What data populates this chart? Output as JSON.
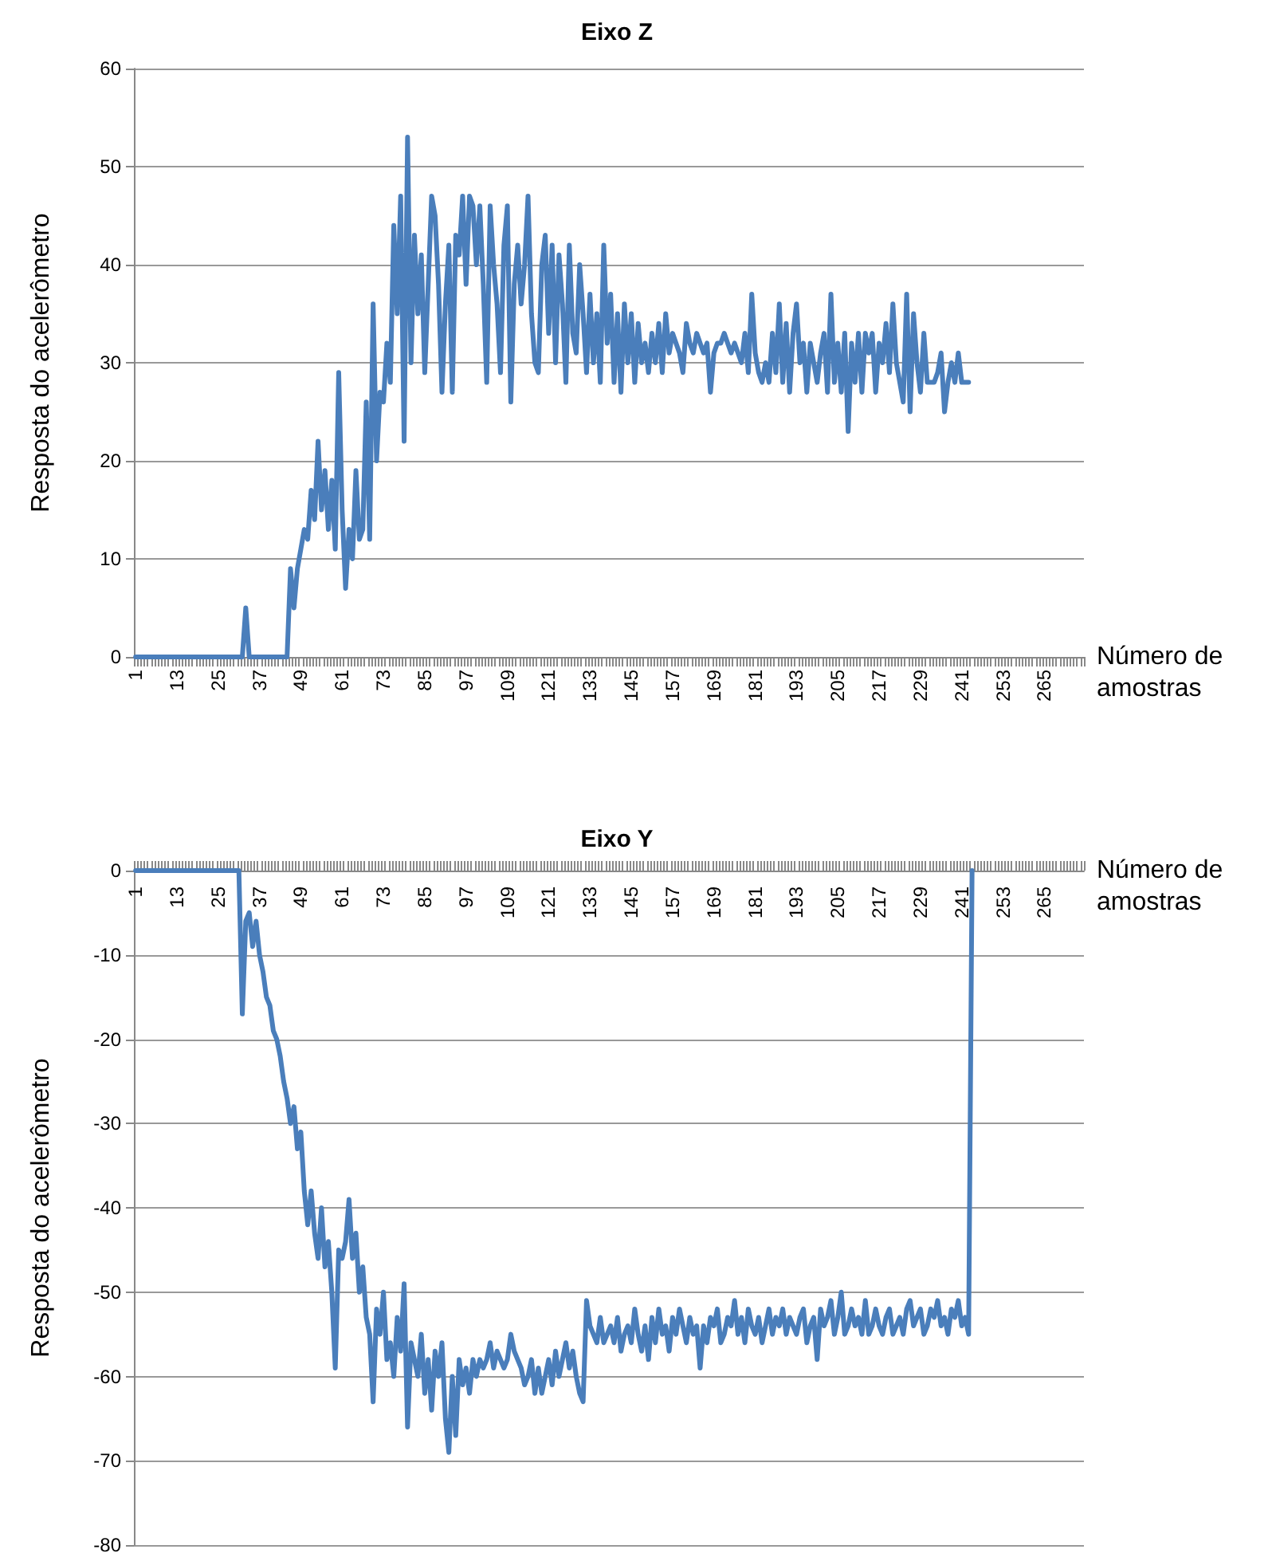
{
  "chart_data": [
    {
      "type": "line",
      "title": "Eixo Z",
      "xlabel": "Número de amostras",
      "ylabel": "Resposta do acelerômetro",
      "marker": "none",
      "grid": "y",
      "ylim": [
        0,
        60
      ],
      "yticks": [
        0,
        10,
        20,
        30,
        40,
        50,
        60
      ],
      "categories": [
        "1",
        null,
        null,
        null,
        null,
        null,
        null,
        null,
        null,
        null,
        null,
        null,
        "13",
        null,
        null,
        null,
        null,
        null,
        null,
        null,
        null,
        null,
        null,
        null,
        "25",
        null,
        null,
        null,
        null,
        null,
        null,
        null,
        null,
        null,
        null,
        null,
        "37",
        null,
        null,
        null,
        null,
        null,
        null,
        null,
        null,
        null,
        null,
        null,
        "49",
        null,
        null,
        null,
        null,
        null,
        null,
        null,
        null,
        null,
        null,
        null,
        "61",
        null,
        null,
        null,
        null,
        null,
        null,
        null,
        null,
        null,
        null,
        null,
        "73",
        null,
        null,
        null,
        null,
        null,
        null,
        null,
        null,
        null,
        null,
        null,
        "85",
        null,
        null,
        null,
        null,
        null,
        null,
        null,
        null,
        null,
        null,
        null,
        "97",
        null,
        null,
        null,
        null,
        null,
        null,
        null,
        null,
        null,
        null,
        null,
        "109",
        null,
        null,
        null,
        null,
        null,
        null,
        null,
        null,
        null,
        null,
        null,
        "121",
        null,
        null,
        null,
        null,
        null,
        null,
        null,
        null,
        null,
        null,
        null,
        "133",
        null,
        null,
        null,
        null,
        null,
        null,
        null,
        null,
        null,
        null,
        null,
        "145",
        null,
        null,
        null,
        null,
        null,
        null,
        null,
        null,
        null,
        null,
        null,
        "157",
        null,
        null,
        null,
        null,
        null,
        null,
        null,
        null,
        null,
        null,
        null,
        "169",
        null,
        null,
        null,
        null,
        null,
        null,
        null,
        null,
        null,
        null,
        null,
        "181",
        null,
        null,
        null,
        null,
        null,
        null,
        null,
        null,
        null,
        null,
        null,
        "193",
        null,
        null,
        null,
        null,
        null,
        null,
        null,
        null,
        null,
        null,
        null,
        "205",
        null,
        null,
        null,
        null,
        null,
        null,
        null,
        null,
        null,
        null,
        null,
        "217",
        null,
        null,
        null,
        null,
        null,
        null,
        null,
        null,
        null,
        null,
        null,
        "229",
        null,
        null,
        null,
        null,
        null,
        null,
        null,
        null,
        null,
        null,
        null,
        "241",
        null,
        null,
        null,
        null,
        null,
        null,
        null,
        null,
        null,
        null,
        null,
        "253",
        null,
        null,
        null,
        null,
        null,
        null,
        null,
        null,
        null,
        null,
        null,
        "265",
        null,
        null,
        null,
        null,
        null,
        null,
        null,
        null,
        null,
        null,
        null
      ],
      "series": [
        {
          "color": "#4a7ebb",
          "values": [
            0,
            0,
            0,
            0,
            0,
            0,
            0,
            0,
            0,
            0,
            0,
            0,
            0,
            0,
            0,
            0,
            0,
            0,
            0,
            0,
            0,
            0,
            0,
            0,
            0,
            0,
            0,
            0,
            0,
            0,
            0,
            0,
            5,
            0,
            0,
            0,
            0,
            0,
            0,
            0,
            0,
            0,
            0,
            0,
            0,
            9,
            5,
            9,
            11,
            13,
            12,
            17,
            14,
            22,
            15,
            19,
            13,
            18,
            11,
            29,
            15,
            7,
            13,
            10,
            19,
            12,
            13,
            26,
            12,
            36,
            20,
            27,
            26,
            32,
            28,
            44,
            35,
            47,
            22,
            53,
            30,
            43,
            35,
            41,
            29,
            38,
            47,
            45,
            38,
            27,
            36,
            42,
            27,
            43,
            41,
            47,
            38,
            47,
            46,
            40,
            46,
            38,
            28,
            46,
            40,
            36,
            29,
            42,
            46,
            26,
            38,
            42,
            36,
            40,
            47,
            35,
            30,
            29,
            40,
            43,
            33,
            42,
            30,
            41,
            36,
            28,
            42,
            33,
            31,
            40,
            35,
            29,
            37,
            30,
            35,
            28,
            42,
            32,
            37,
            28,
            35,
            27,
            36,
            30,
            35,
            28,
            34,
            30,
            32,
            29,
            33,
            30,
            34,
            29,
            35,
            31,
            33,
            32,
            31,
            29,
            34,
            32,
            31,
            33,
            32,
            31,
            32,
            27,
            31,
            32,
            32,
            33,
            32,
            31,
            32,
            31,
            30,
            33,
            29,
            37,
            31,
            29,
            28,
            30,
            28,
            33,
            29,
            36,
            28,
            34,
            27,
            33,
            36,
            30,
            32,
            27,
            32,
            30,
            28,
            31,
            33,
            27,
            37,
            28,
            32,
            27,
            33,
            23,
            32,
            28,
            33,
            27,
            33,
            31,
            33,
            27,
            32,
            30,
            34,
            29,
            36,
            30,
            28,
            26,
            37,
            25,
            35,
            30,
            27,
            33,
            28,
            28,
            28,
            29,
            31,
            25,
            28,
            30,
            28,
            31,
            28,
            28,
            28,
            null,
            null,
            null,
            null,
            null,
            null,
            null,
            null,
            null,
            null,
            null,
            null,
            null,
            null,
            null,
            null,
            null,
            null,
            null,
            null,
            null,
            null,
            null,
            null,
            null,
            null,
            null,
            null,
            null,
            null,
            null,
            null,
            null
          ]
        }
      ]
    },
    {
      "type": "line",
      "title": "Eixo Y",
      "xlabel": "Número de amostras",
      "ylabel": "Resposta do acelerômetro",
      "marker": "none",
      "grid": "y",
      "ylim": [
        -80,
        0
      ],
      "yticks": [
        -80,
        -70,
        -60,
        -50,
        -40,
        -30,
        -20,
        -10,
        0
      ],
      "categories": [
        "1",
        null,
        null,
        null,
        null,
        null,
        null,
        null,
        null,
        null,
        null,
        null,
        "13",
        null,
        null,
        null,
        null,
        null,
        null,
        null,
        null,
        null,
        null,
        null,
        "25",
        null,
        null,
        null,
        null,
        null,
        null,
        null,
        null,
        null,
        null,
        null,
        "37",
        null,
        null,
        null,
        null,
        null,
        null,
        null,
        null,
        null,
        null,
        null,
        "49",
        null,
        null,
        null,
        null,
        null,
        null,
        null,
        null,
        null,
        null,
        null,
        "61",
        null,
        null,
        null,
        null,
        null,
        null,
        null,
        null,
        null,
        null,
        null,
        "73",
        null,
        null,
        null,
        null,
        null,
        null,
        null,
        null,
        null,
        null,
        null,
        "85",
        null,
        null,
        null,
        null,
        null,
        null,
        null,
        null,
        null,
        null,
        null,
        "97",
        null,
        null,
        null,
        null,
        null,
        null,
        null,
        null,
        null,
        null,
        null,
        "109",
        null,
        null,
        null,
        null,
        null,
        null,
        null,
        null,
        null,
        null,
        null,
        "121",
        null,
        null,
        null,
        null,
        null,
        null,
        null,
        null,
        null,
        null,
        null,
        "133",
        null,
        null,
        null,
        null,
        null,
        null,
        null,
        null,
        null,
        null,
        null,
        "145",
        null,
        null,
        null,
        null,
        null,
        null,
        null,
        null,
        null,
        null,
        null,
        "157",
        null,
        null,
        null,
        null,
        null,
        null,
        null,
        null,
        null,
        null,
        null,
        "169",
        null,
        null,
        null,
        null,
        null,
        null,
        null,
        null,
        null,
        null,
        null,
        "181",
        null,
        null,
        null,
        null,
        null,
        null,
        null,
        null,
        null,
        null,
        null,
        "193",
        null,
        null,
        null,
        null,
        null,
        null,
        null,
        null,
        null,
        null,
        null,
        "205",
        null,
        null,
        null,
        null,
        null,
        null,
        null,
        null,
        null,
        null,
        null,
        "217",
        null,
        null,
        null,
        null,
        null,
        null,
        null,
        null,
        null,
        null,
        null,
        "229",
        null,
        null,
        null,
        null,
        null,
        null,
        null,
        null,
        null,
        null,
        null,
        "241",
        null,
        null,
        null,
        null,
        null,
        null,
        null,
        null,
        null,
        null,
        null,
        "253",
        null,
        null,
        null,
        null,
        null,
        null,
        null,
        null,
        null,
        null,
        null,
        "265",
        null,
        null,
        null,
        null,
        null,
        null,
        null,
        null,
        null,
        null,
        null
      ],
      "series": [
        {
          "color": "#4a7ebb",
          "values": [
            0,
            0,
            0,
            0,
            0,
            0,
            0,
            0,
            0,
            0,
            0,
            0,
            0,
            0,
            0,
            0,
            0,
            0,
            0,
            0,
            0,
            0,
            0,
            0,
            0,
            0,
            0,
            0,
            0,
            0,
            0,
            -17,
            -6,
            -5,
            -9,
            -6,
            -10,
            -12,
            -15,
            -16,
            -19,
            -20,
            -22,
            -25,
            -27,
            -30,
            -28,
            -33,
            -31,
            -38,
            -42,
            -38,
            -43,
            -46,
            -40,
            -47,
            -44,
            -50,
            -59,
            -45,
            -46,
            -44,
            -39,
            -46,
            -43,
            -50,
            -47,
            -53,
            -55,
            -63,
            -52,
            -55,
            -50,
            -58,
            -56,
            -60,
            -53,
            -57,
            -49,
            -66,
            -56,
            -58,
            -60,
            -55,
            -62,
            -58,
            -64,
            -57,
            -60,
            -56,
            -65,
            -69,
            -60,
            -67,
            -58,
            -61,
            -59,
            -62,
            -58,
            -60,
            -58,
            -59,
            -58,
            -56,
            -59,
            -57,
            -58,
            -59,
            -58,
            -55,
            -57,
            -58,
            -59,
            -61,
            -60,
            -58,
            -62,
            -59,
            -62,
            -60,
            -58,
            -61,
            -57,
            -60,
            -58,
            -56,
            -59,
            -57,
            -60,
            -62,
            -63,
            -51,
            -54,
            -55,
            -56,
            -53,
            -56,
            -55,
            -54,
            -56,
            -53,
            -57,
            -55,
            -54,
            -56,
            -52,
            -55,
            -57,
            -54,
            -58,
            -53,
            -56,
            -52,
            -55,
            -54,
            -57,
            -53,
            -55,
            -52,
            -54,
            -56,
            -53,
            -55,
            -54,
            -59,
            -54,
            -56,
            -53,
            -54,
            -52,
            -56,
            -55,
            -53,
            -54,
            -51,
            -55,
            -53,
            -56,
            -52,
            -54,
            -55,
            -53,
            -56,
            -54,
            -52,
            -55,
            -53,
            -54,
            -52,
            -55,
            -53,
            -54,
            -55,
            -53,
            -52,
            -56,
            -54,
            -53,
            -58,
            -52,
            -54,
            -53,
            -51,
            -55,
            -53,
            -50,
            -55,
            -54,
            -52,
            -54,
            -53,
            -55,
            -51,
            -55,
            -54,
            -52,
            -54,
            -55,
            -53,
            -52,
            -55,
            -54,
            -53,
            -55,
            -52,
            -51,
            -54,
            -53,
            -52,
            -55,
            -54,
            -52,
            -53,
            -51,
            -54,
            -53,
            -55,
            -52,
            -53,
            -51,
            -54,
            -53,
            -55,
            0,
            null,
            null,
            null,
            null,
            null,
            null,
            null,
            null,
            null,
            null,
            null,
            null,
            null,
            null,
            null,
            null,
            null,
            null,
            null,
            null,
            null,
            null,
            null,
            null,
            null,
            null,
            null,
            null,
            null,
            null,
            null,
            null
          ]
        }
      ]
    }
  ]
}
